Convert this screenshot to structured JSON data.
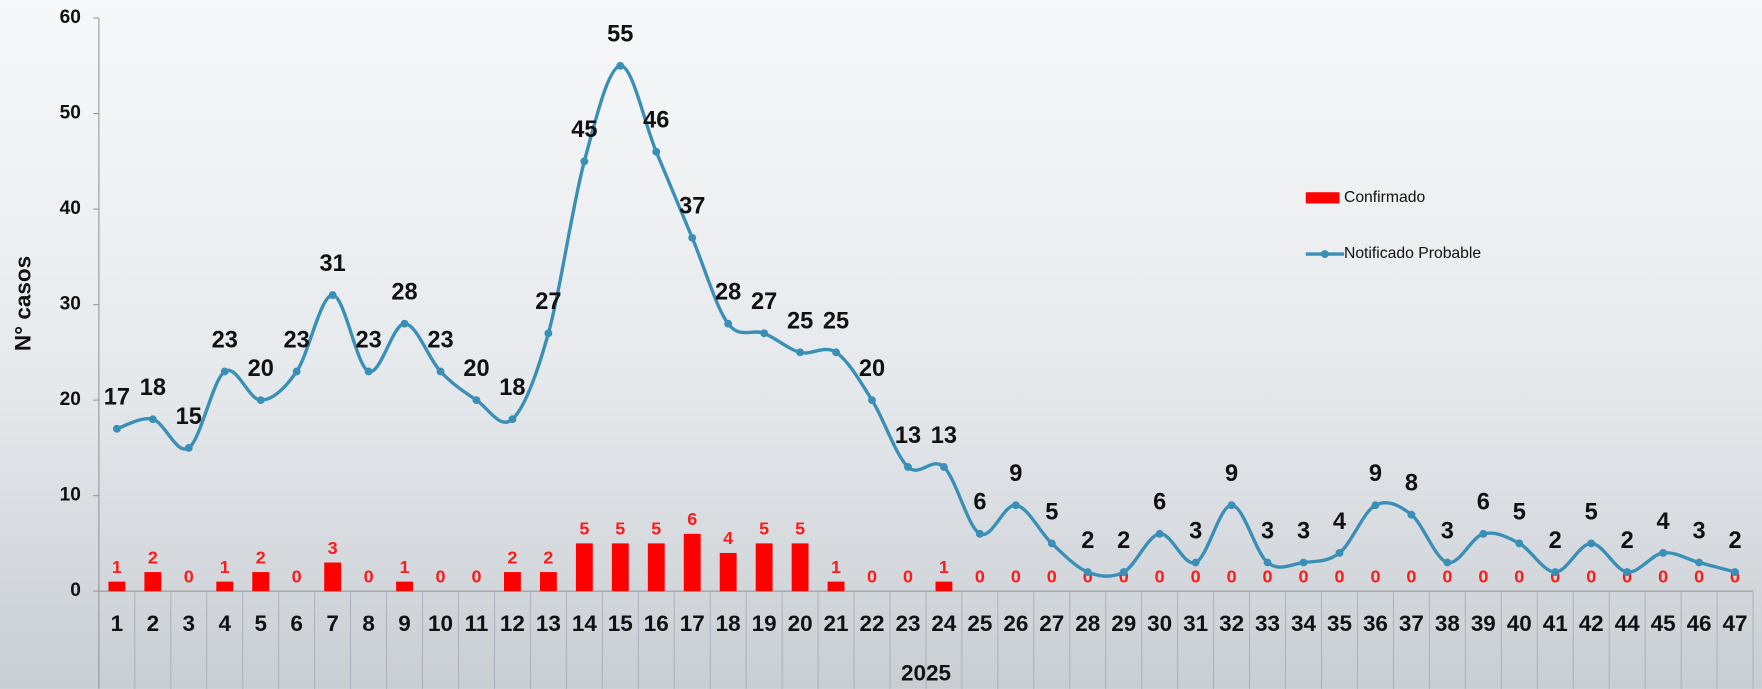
{
  "chart_data": {
    "type": "bar_line",
    "y_label": "N° casos",
    "x_label": "2025",
    "categories": [
      "1",
      "2",
      "3",
      "4",
      "5",
      "6",
      "7",
      "8",
      "9",
      "10",
      "11",
      "12",
      "13",
      "14",
      "15",
      "16",
      "17",
      "18",
      "19",
      "20",
      "21",
      "22",
      "23",
      "24",
      "25",
      "26",
      "27",
      "28",
      "29",
      "30",
      "31",
      "32",
      "33",
      "34",
      "35",
      "36",
      "37",
      "38",
      "39",
      "40",
      "41",
      "42",
      "44",
      "45",
      "46",
      "47"
    ],
    "series": [
      {
        "name": "Confirmado",
        "kind": "bar",
        "color": "#ff0000",
        "values": [
          1,
          2,
          0,
          1,
          2,
          0,
          3,
          0,
          1,
          0,
          0,
          2,
          2,
          5,
          5,
          5,
          6,
          4,
          5,
          5,
          1,
          0,
          0,
          1,
          0,
          0,
          0,
          0,
          0,
          0,
          0,
          0,
          0,
          0,
          0,
          0,
          0,
          0,
          0,
          0,
          0,
          0,
          0,
          0,
          0,
          0
        ]
      },
      {
        "name": "Notificado  Probable",
        "kind": "line",
        "color": "#3a8fb7",
        "values": [
          17,
          18,
          15,
          23,
          20,
          23,
          31,
          23,
          28,
          23,
          20,
          18,
          27,
          45,
          55,
          46,
          37,
          28,
          27,
          25,
          25,
          20,
          13,
          13,
          6,
          9,
          5,
          2,
          2,
          6,
          3,
          9,
          3,
          3,
          4,
          9,
          8,
          3,
          6,
          5,
          2,
          5,
          2,
          4,
          3,
          2
        ]
      }
    ],
    "ylim": [
      0,
      60
    ],
    "yticks": [
      0,
      10,
      20,
      30,
      40,
      50,
      60
    ],
    "legend": "right"
  }
}
